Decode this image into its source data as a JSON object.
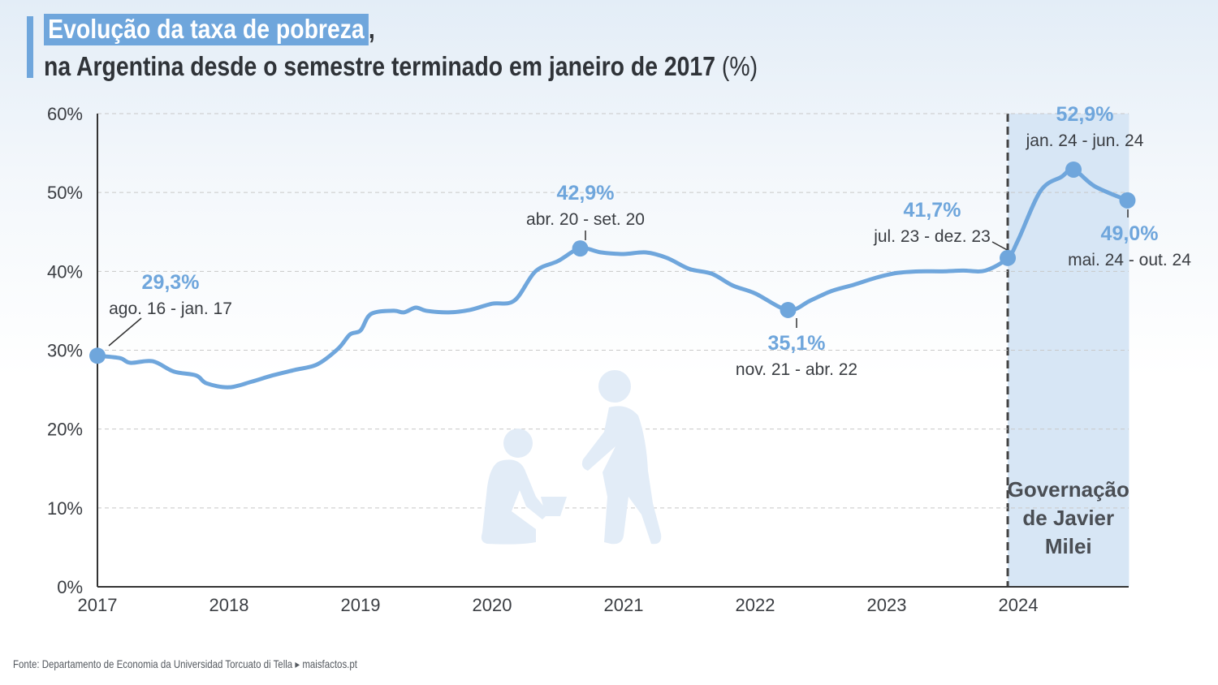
{
  "header": {
    "title_highlight": "Evolução da taxa de pobreza",
    "title_comma": ",",
    "subtitle": "na Argentina desde o semestre terminado em janeiro de 2017",
    "subtitle_unit": "(%)"
  },
  "colors": {
    "line": "#6fa6dc",
    "label_value": "#6fa6dc",
    "label_period": "#3a3d42",
    "shade": "#d7e6f5",
    "axis": "#333333",
    "grid": "#c8c8c8"
  },
  "chart_data": {
    "type": "line",
    "x_unit": "year (decimal)",
    "xlim": [
      2017,
      2024.85
    ],
    "ylim": [
      0,
      60
    ],
    "y_ticks": [
      0,
      10,
      20,
      30,
      40,
      50,
      60
    ],
    "y_tick_labels": [
      "0%",
      "10%",
      "20%",
      "30%",
      "40%",
      "50%",
      "60%"
    ],
    "x_ticks": [
      2017,
      2018,
      2019,
      2020,
      2021,
      2022,
      2023,
      2024
    ],
    "x_tick_labels": [
      "2017",
      "2018",
      "2019",
      "2020",
      "2021",
      "2022",
      "2023",
      "2024"
    ],
    "grid": "horizontal dashed",
    "series": [
      {
        "points": [
          [
            2017.0,
            29.3
          ],
          [
            2017.17,
            29.0
          ],
          [
            2017.25,
            28.4
          ],
          [
            2017.42,
            28.6
          ],
          [
            2017.58,
            27.3
          ],
          [
            2017.75,
            26.8
          ],
          [
            2017.83,
            25.8
          ],
          [
            2018.0,
            25.3
          ],
          [
            2018.17,
            26.0
          ],
          [
            2018.33,
            26.8
          ],
          [
            2018.5,
            27.5
          ],
          [
            2018.67,
            28.2
          ],
          [
            2018.83,
            30.2
          ],
          [
            2018.92,
            32.0
          ],
          [
            2019.0,
            32.5
          ],
          [
            2019.08,
            34.6
          ],
          [
            2019.25,
            35.0
          ],
          [
            2019.33,
            34.8
          ],
          [
            2019.42,
            35.4
          ],
          [
            2019.5,
            35.0
          ],
          [
            2019.67,
            34.8
          ],
          [
            2019.83,
            35.1
          ],
          [
            2020.0,
            35.9
          ],
          [
            2020.17,
            36.3
          ],
          [
            2020.33,
            40.0
          ],
          [
            2020.5,
            41.3
          ],
          [
            2020.67,
            42.9
          ],
          [
            2020.83,
            42.4
          ],
          [
            2021.0,
            42.2
          ],
          [
            2021.17,
            42.4
          ],
          [
            2021.33,
            41.7
          ],
          [
            2021.5,
            40.3
          ],
          [
            2021.67,
            39.7
          ],
          [
            2021.83,
            38.2
          ],
          [
            2022.0,
            37.2
          ],
          [
            2022.25,
            35.1
          ],
          [
            2022.42,
            36.3
          ],
          [
            2022.58,
            37.5
          ],
          [
            2022.75,
            38.3
          ],
          [
            2022.92,
            39.2
          ],
          [
            2023.08,
            39.8
          ],
          [
            2023.25,
            40.0
          ],
          [
            2023.42,
            40.0
          ],
          [
            2023.58,
            40.1
          ],
          [
            2023.75,
            40.1
          ],
          [
            2023.92,
            41.7
          ],
          [
            2024.0,
            44.0
          ],
          [
            2024.17,
            50.2
          ],
          [
            2024.33,
            52.0
          ],
          [
            2024.42,
            52.9
          ],
          [
            2024.58,
            50.8
          ],
          [
            2024.83,
            49.0
          ]
        ]
      }
    ],
    "highlights": [
      {
        "x": 2017.0,
        "y": 29.3,
        "value_label": "29,3%",
        "period_label": "ago. 16 - jan. 17"
      },
      {
        "x": 2020.67,
        "y": 42.9,
        "value_label": "42,9%",
        "period_label": "abr. 20 - set. 20"
      },
      {
        "x": 2022.25,
        "y": 35.1,
        "value_label": "35,1%",
        "period_label": "nov. 21 - abr. 22"
      },
      {
        "x": 2023.92,
        "y": 41.7,
        "value_label": "41,7%",
        "period_label": "jul. 23 - dez. 23"
      },
      {
        "x": 2024.42,
        "y": 52.9,
        "value_label": "52,9%",
        "period_label": "jan. 24 - jun. 24"
      },
      {
        "x": 2024.83,
        "y": 49.0,
        "value_label": "49,0%",
        "period_label": "mai. 24 - out. 24"
      }
    ],
    "shaded_region": {
      "x_start": 2023.92,
      "x_end": 2024.83,
      "label_lines": [
        "Governação",
        "de Javier",
        "Milei"
      ]
    }
  },
  "footer": {
    "source": "Fonte: Departamento de Economia da Universidad Torcuato di Tella ▸ maisfactos.pt"
  }
}
